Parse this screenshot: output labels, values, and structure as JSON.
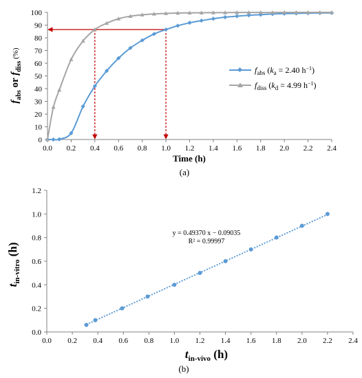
{
  "chart_data": [
    {
      "panel_label": "(a)",
      "type": "line",
      "xlabel": "Time (h)",
      "ylabel_parts": {
        "f1": "f",
        "s1": "abs",
        "or": " or ",
        "f2": "f",
        "s2": "diss",
        "unit": " (%)"
      },
      "xlim": [
        0,
        2.4
      ],
      "ylim": [
        0,
        100
      ],
      "xticks": [
        "0.0",
        "0.2",
        "0.4",
        "0.6",
        "0.8",
        "1.0",
        "1.2",
        "1.4",
        "1.6",
        "1.8",
        "2.0",
        "2.2",
        "2.4"
      ],
      "yticks": [
        "0",
        "10",
        "20",
        "30",
        "40",
        "50",
        "60",
        "70",
        "80",
        "90",
        "100"
      ],
      "grid": false,
      "legend_position": "center-right",
      "series": [
        {
          "name": "fabs (ka = 2.40 h−1)",
          "legend": {
            "f": "f",
            "sub": "abs",
            "open": " (",
            "k": "k",
            "ksub": "a",
            "eq": " = 2.40 h",
            "sup": "−1",
            "close": ")"
          },
          "color": "#5b9bd5",
          "marker": "diamond",
          "x": [
            0,
            0.05,
            0.1,
            0.2,
            0.3,
            0.4,
            0.5,
            0.6,
            0.7,
            0.8,
            0.9,
            1.0,
            1.1,
            1.2,
            1.3,
            1.4,
            1.5,
            1.6,
            1.7,
            1.8,
            1.9,
            2.0,
            2.1,
            2.2,
            2.3,
            2.4
          ],
          "y": [
            0,
            0,
            0.2,
            5,
            26,
            42,
            54,
            64,
            72,
            78,
            83,
            86.5,
            89.5,
            91.8,
            93.5,
            95,
            96.2,
            97,
            97.7,
            98.2,
            98.7,
            99,
            99.2,
            99.4,
            99.5,
            99.6
          ]
        },
        {
          "name": "fdiss (kd = 4.99 h−1)",
          "legend": {
            "f": "f",
            "sub": "diss",
            "open": " (",
            "k": "k",
            "ksub": "d",
            "eq": " = 4.99 h",
            "sup": "−1",
            "close": ")"
          },
          "color": "#a5a5a5",
          "marker": "triangle",
          "x": [
            0,
            0.05,
            0.1,
            0.2,
            0.3,
            0.4,
            0.5,
            0.6,
            0.7,
            0.8,
            0.9,
            1.0,
            1.1,
            1.2,
            1.3,
            1.4,
            1.5,
            1.6,
            1.7,
            1.8,
            1.9,
            2.0,
            2.1,
            2.2,
            2.3,
            2.4
          ],
          "y": [
            0,
            25.5,
            39,
            63,
            77.5,
            86.5,
            91.5,
            95,
            97,
            98.1,
            98.8,
            99.2,
            99.5,
            99.6,
            99.7,
            99.8,
            99.8,
            99.9,
            99.9,
            99.9,
            99.9,
            100,
            100,
            100,
            100,
            100
          ]
        }
      ],
      "annotations": {
        "hline": {
          "y": 86.5,
          "x_from": 1.0,
          "x_to": 0.0,
          "color": "#c00000"
        },
        "vlines": [
          {
            "x": 0.4,
            "y_from": 86.5,
            "y_to": 0,
            "color": "#c00000"
          },
          {
            "x": 1.0,
            "y_from": 86.5,
            "y_to": 0,
            "color": "#c00000"
          }
        ]
      }
    },
    {
      "panel_label": "(b)",
      "type": "scatter",
      "xlabel_parts": {
        "t": "t",
        "sub": "in-vivo",
        "unit": " (h)"
      },
      "ylabel_parts": {
        "t": "t",
        "sub": "in-vitro",
        "unit": " (h)"
      },
      "xlim": [
        0,
        2.4
      ],
      "ylim": [
        0,
        1.2
      ],
      "xticks": [
        "0.0",
        "0.2",
        "0.4",
        "0.6",
        "0.8",
        "1.0",
        "1.2",
        "1.4",
        "1.6",
        "1.8",
        "2.0",
        "2.2",
        "2.4"
      ],
      "yticks": [
        "0.0",
        "0.2",
        "0.4",
        "0.6",
        "0.8",
        "1.0",
        "1.2"
      ],
      "grid": false,
      "color": "#5b9bd5",
      "x": [
        0.31,
        0.38,
        0.59,
        0.79,
        1.0,
        1.2,
        1.4,
        1.6,
        1.8,
        2.0,
        2.2
      ],
      "y": [
        0.06,
        0.1,
        0.2,
        0.3,
        0.4,
        0.5,
        0.6,
        0.7,
        0.8,
        0.9,
        1.0
      ],
      "trendline": {
        "slope": 0.4937,
        "intercept": -0.09035,
        "x_from": 0.31,
        "x_to": 2.2
      },
      "equation": "y = 0.49370 x − 0.09035",
      "r2": "R² = 0.99997"
    }
  ]
}
